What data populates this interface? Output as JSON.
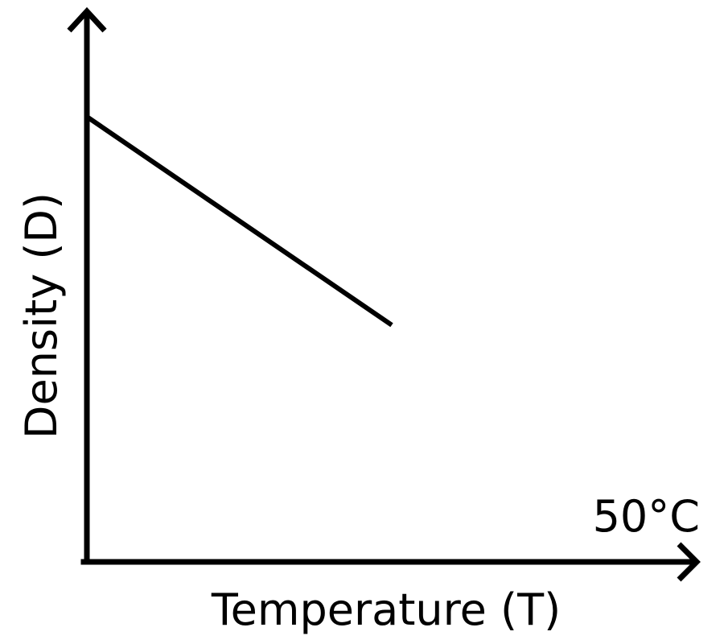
{
  "chart_data": {
    "type": "line",
    "title": "",
    "xlabel": "Temperature (T)",
    "ylabel": "Density (D)",
    "x_end_label": "50°C",
    "grid": false,
    "legend": "none",
    "xlim": [
      0,
      100
    ],
    "ylim": [
      0,
      100
    ],
    "series": [
      {
        "color": "#000000",
        "points": [
          {
            "x": 0,
            "y": 100
          },
          {
            "x": 50,
            "y": 53.2
          }
        ]
      }
    ]
  }
}
